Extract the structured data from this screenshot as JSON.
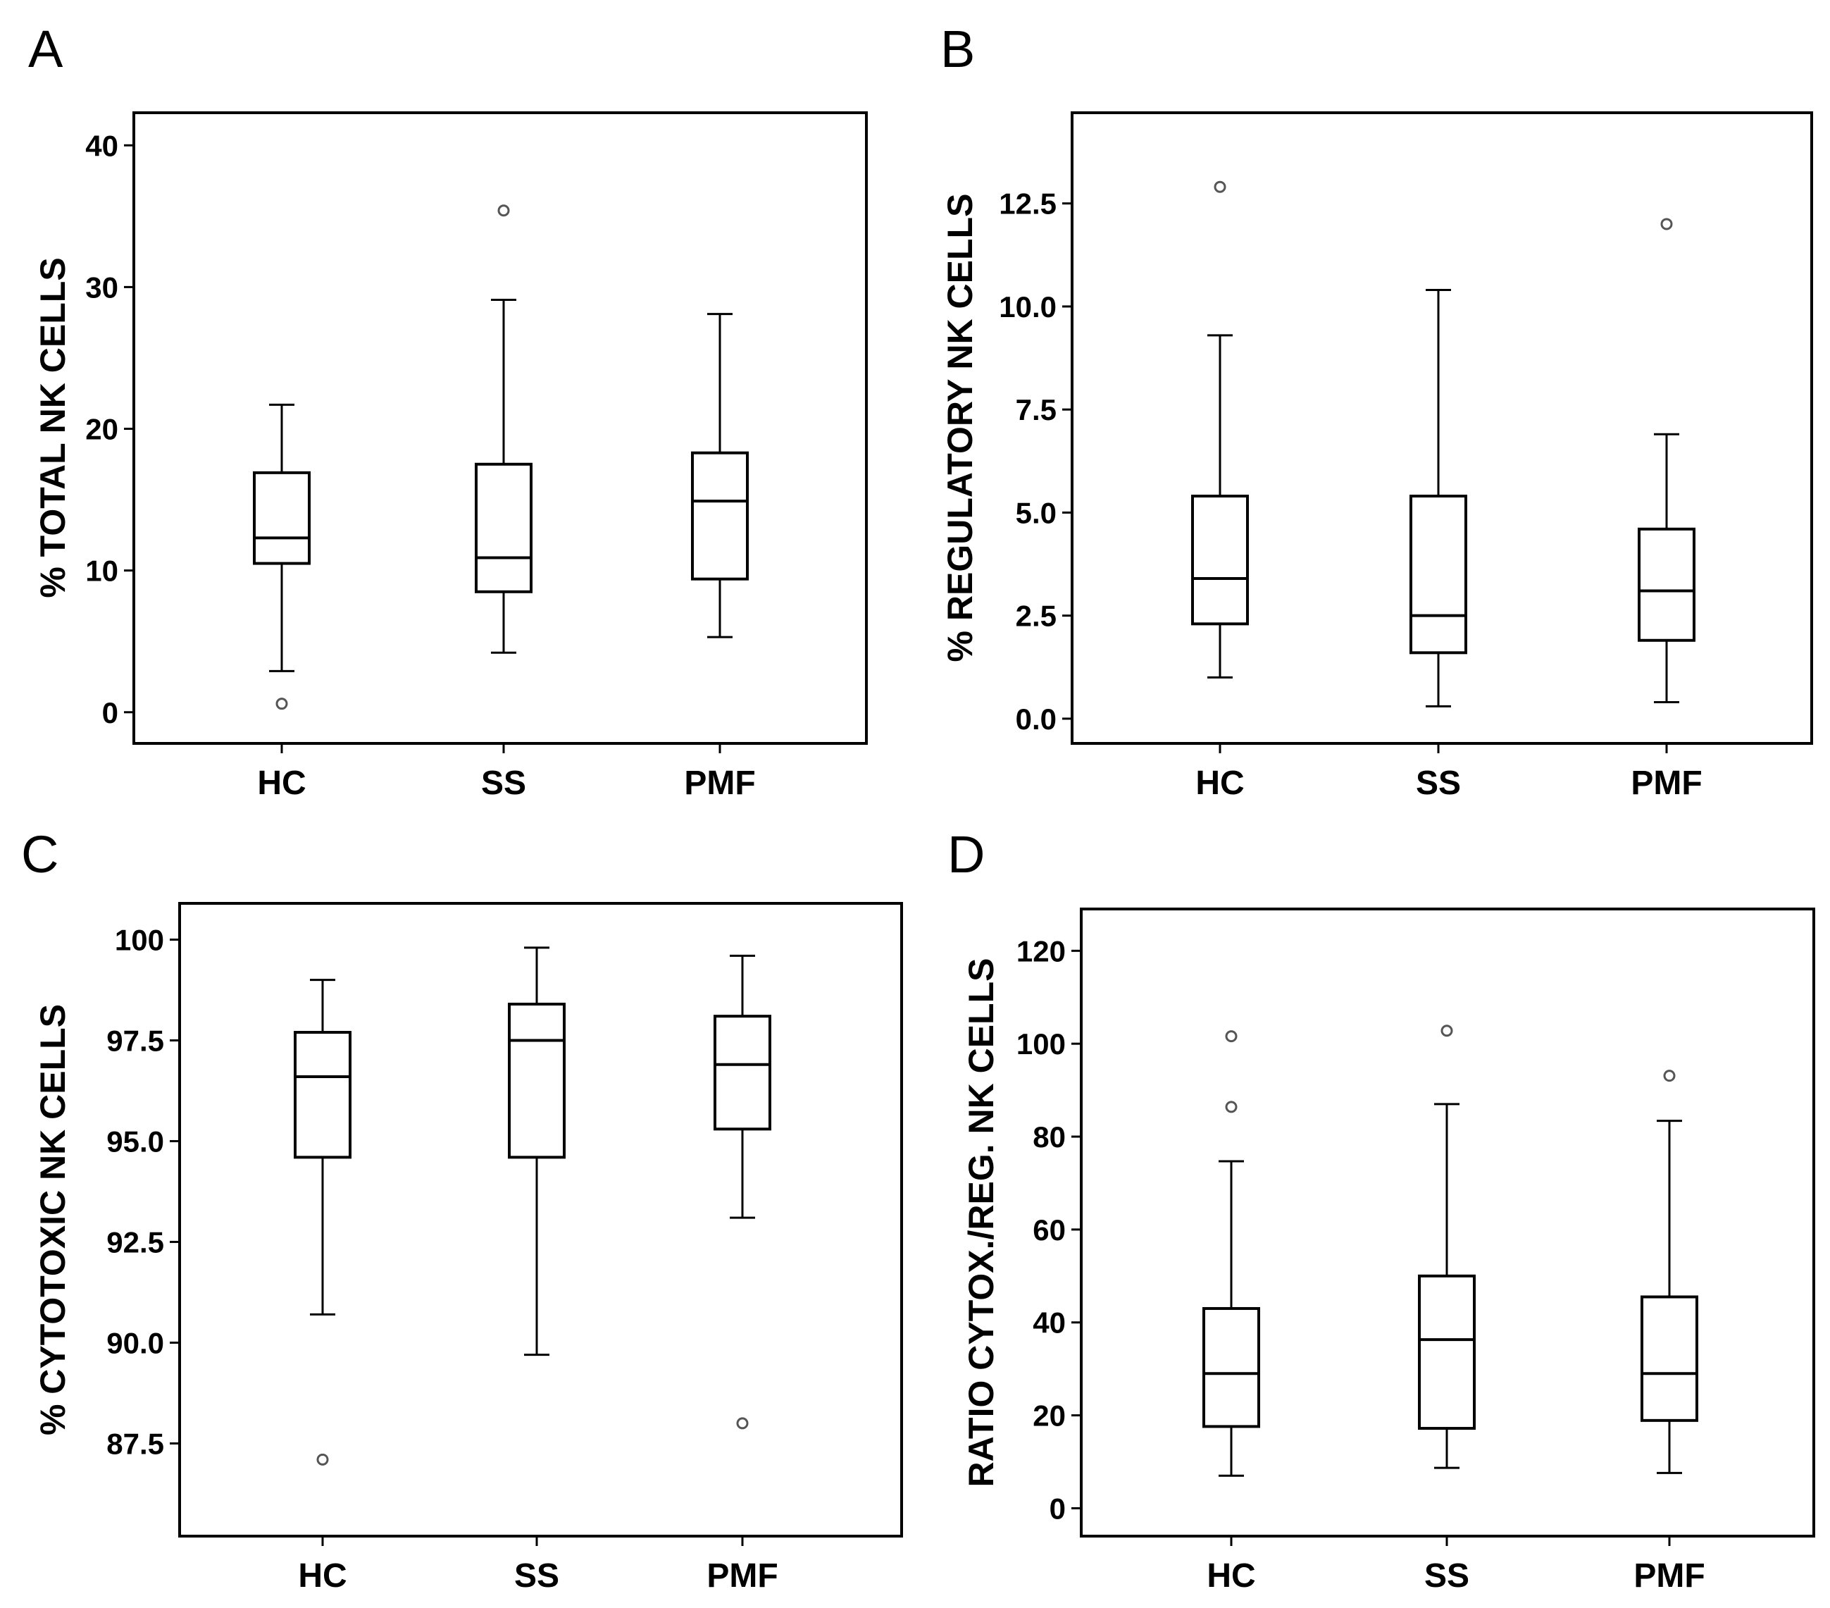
{
  "chart_data": [
    {
      "type": "box",
      "panel": "A",
      "ylabel": "% TOTAL NK CELLS",
      "ylim": [
        -2.2,
        42.3
      ],
      "yticks": [
        0,
        10,
        20,
        30,
        40
      ],
      "ytick_labels": [
        "0",
        "10",
        "20",
        "30",
        "40"
      ],
      "categories": [
        "HC",
        "SS",
        "PMF"
      ],
      "boxes": [
        {
          "category": "HC",
          "whisker_low": 2.9,
          "q1": 10.5,
          "median": 12.3,
          "q3": 16.9,
          "whisker_high": 21.7,
          "outliers": [
            0.6
          ]
        },
        {
          "category": "SS",
          "whisker_low": 4.2,
          "q1": 8.5,
          "median": 10.9,
          "q3": 17.5,
          "whisker_high": 29.1,
          "outliers": [
            35.4
          ]
        },
        {
          "category": "PMF",
          "whisker_low": 5.3,
          "q1": 9.4,
          "median": 14.9,
          "q3": 18.3,
          "whisker_high": 28.1,
          "outliers": []
        }
      ]
    },
    {
      "type": "box",
      "panel": "B",
      "ylabel": "% REGULATORY NK CELLS",
      "ylim": [
        -0.6,
        14.7
      ],
      "yticks": [
        0,
        2.5,
        5,
        7.5,
        10,
        12.5
      ],
      "ytick_labels": [
        "0.0",
        "2.5",
        "5.0",
        "7.5",
        "10.0",
        "12.5"
      ],
      "categories": [
        "HC",
        "SS",
        "PMF"
      ],
      "boxes": [
        {
          "category": "HC",
          "whisker_low": 1.0,
          "q1": 2.3,
          "median": 3.4,
          "q3": 5.4,
          "whisker_high": 9.3,
          "outliers": [
            12.9
          ]
        },
        {
          "category": "SS",
          "whisker_low": 0.3,
          "q1": 1.6,
          "median": 2.5,
          "q3": 5.4,
          "whisker_high": 10.4,
          "outliers": []
        },
        {
          "category": "PMF",
          "whisker_low": 0.4,
          "q1": 1.9,
          "median": 3.1,
          "q3": 4.6,
          "whisker_high": 6.9,
          "outliers": [
            12.0
          ]
        }
      ]
    },
    {
      "type": "box",
      "panel": "C",
      "ylabel": "% CYTOTOXIC NK CELLS",
      "ylim": [
        85.2,
        100.9
      ],
      "yticks": [
        87.5,
        90,
        92.5,
        95,
        97.5,
        100
      ],
      "ytick_labels": [
        "87.5",
        "90.0",
        "92.5",
        "95.0",
        "97.5",
        "100"
      ],
      "categories": [
        "HC",
        "SS",
        "PMF"
      ],
      "boxes": [
        {
          "category": "HC",
          "whisker_low": 90.7,
          "q1": 94.6,
          "median": 96.6,
          "q3": 97.7,
          "whisker_high": 99.0,
          "outliers": [
            87.1
          ]
        },
        {
          "category": "SS",
          "whisker_low": 89.7,
          "q1": 94.6,
          "median": 97.5,
          "q3": 98.4,
          "whisker_high": 99.8,
          "outliers": []
        },
        {
          "category": "PMF",
          "whisker_low": 93.1,
          "q1": 95.3,
          "median": 96.9,
          "q3": 98.1,
          "whisker_high": 99.6,
          "outliers": [
            88.0
          ]
        }
      ]
    },
    {
      "type": "box",
      "panel": "D",
      "ylabel": "RATIO CYTOX./REG. NK CELLS",
      "ylim": [
        -6,
        129
      ],
      "yticks": [
        0,
        20,
        40,
        60,
        80,
        100,
        120
      ],
      "ytick_labels": [
        "0",
        "20",
        "40",
        "60",
        "80",
        "100",
        "120"
      ],
      "categories": [
        "HC",
        "SS",
        "PMF"
      ],
      "boxes": [
        {
          "category": "HC",
          "whisker_low": 7.0,
          "q1": 17.6,
          "median": 29.0,
          "q3": 43.0,
          "whisker_high": 74.7,
          "outliers": [
            86.4,
            101.6
          ]
        },
        {
          "category": "SS",
          "whisker_low": 8.7,
          "q1": 17.2,
          "median": 36.3,
          "q3": 50.0,
          "whisker_high": 87.0,
          "outliers": [
            102.8
          ]
        },
        {
          "category": "PMF",
          "whisker_low": 7.6,
          "q1": 18.9,
          "median": 29.0,
          "q3": 45.5,
          "whisker_high": 83.4,
          "outliers": [
            93.1
          ]
        }
      ]
    }
  ]
}
